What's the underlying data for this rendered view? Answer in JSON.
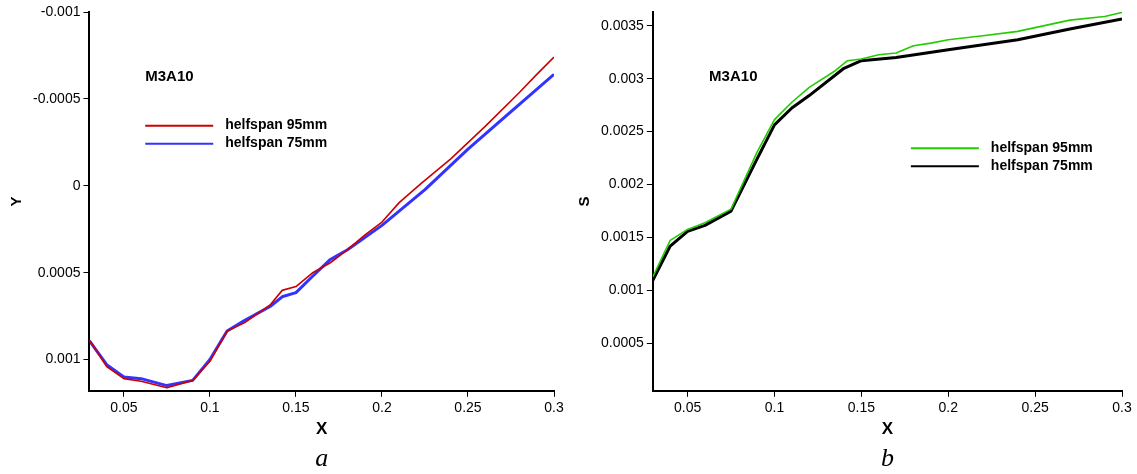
{
  "chart_data": [
    {
      "type": "line",
      "xlabel": "X",
      "ylabel": "Y",
      "annotations": [
        "M3A10",
        "a"
      ],
      "legend": "top left",
      "grid": false,
      "marker": "none",
      "line_style": "solid",
      "xlim": [
        0.03,
        0.3
      ],
      "xticks": [
        0.05,
        0.1,
        0.15,
        0.2,
        0.25,
        0.3
      ],
      "ylim": [
        0.00118,
        -0.001
      ],
      "yticks": [
        -0.001,
        -0.0005,
        0,
        0.0005,
        0.001
      ],
      "series": [
        {
          "name": "helfspan 95mm",
          "color": "#cc0000",
          "x": [
            0.03,
            0.04,
            0.05,
            0.06,
            0.075,
            0.09,
            0.1,
            0.11,
            0.12,
            0.135,
            0.142,
            0.15,
            0.16,
            0.17,
            0.18,
            0.19,
            0.2,
            0.21,
            0.223,
            0.24,
            0.26,
            0.28,
            0.29,
            0.3
          ],
          "values": [
            0.000888,
            0.00104,
            0.00111,
            0.001125,
            0.001163,
            0.00112,
            0.00101,
            0.000836,
            0.000789,
            0.000686,
            0.000602,
            0.00058,
            0.000499,
            0.000443,
            0.000368,
            0.000284,
            0.000209,
            9.7e-05,
            -1.5e-05,
            -0.000155,
            -0.000342,
            -0.000538,
            -0.000641,
            -0.00074
          ]
        },
        {
          "name": "helfspan 75mm",
          "color": "#3333ff",
          "x": [
            0.03,
            0.04,
            0.05,
            0.06,
            0.075,
            0.09,
            0.1,
            0.11,
            0.12,
            0.135,
            0.142,
            0.15,
            0.16,
            0.17,
            0.18,
            0.2,
            0.225,
            0.25,
            0.3
          ],
          "values": [
            0.000892,
            0.00103,
            0.0011,
            0.00111,
            0.00115,
            0.00112,
            0.001,
            0.000836,
            0.000776,
            0.000695,
            0.000639,
            0.000615,
            0.000518,
            0.000424,
            0.000368,
            0.000228,
            2.2e-05,
            -0.000211,
            -0.000641
          ]
        }
      ]
    },
    {
      "type": "line",
      "xlabel": "X",
      "ylabel": "S",
      "annotations": [
        "M3A10",
        "b"
      ],
      "legend": "right",
      "grid": false,
      "marker": "none",
      "line_style": "solid",
      "xlim": [
        0.03,
        0.3
      ],
      "xticks": [
        0.05,
        0.1,
        0.15,
        0.2,
        0.25,
        0.3
      ],
      "ylim": [
        5e-05,
        0.00363
      ],
      "yticks": [
        0.0005,
        0.001,
        0.0015,
        0.002,
        0.0025,
        0.003,
        0.0035
      ],
      "series": [
        {
          "name": "helfspan 95mm",
          "color": "#22cc00",
          "x": [
            0.03,
            0.04,
            0.05,
            0.06,
            0.075,
            0.09,
            0.1,
            0.11,
            0.12,
            0.135,
            0.142,
            0.15,
            0.16,
            0.17,
            0.18,
            0.19,
            0.2,
            0.22,
            0.24,
            0.27,
            0.29,
            0.3
          ],
          "values": [
            0.001126,
            0.001472,
            0.001575,
            0.001638,
            0.001767,
            0.002305,
            0.002613,
            0.002777,
            0.002918,
            0.003075,
            0.00317,
            0.003186,
            0.003226,
            0.003242,
            0.003311,
            0.003336,
            0.003368,
            0.003406,
            0.003447,
            0.003553,
            0.003588,
            0.003626
          ]
        },
        {
          "name": "helfspan 75mm",
          "color": "#000000",
          "x": [
            0.03,
            0.04,
            0.05,
            0.06,
            0.075,
            0.09,
            0.1,
            0.11,
            0.12,
            0.14,
            0.15,
            0.17,
            0.2,
            0.24,
            0.27,
            0.3
          ],
          "values": [
            0.001094,
            0.001418,
            0.001557,
            0.001613,
            0.001748,
            0.002242,
            0.002563,
            0.002723,
            0.00284,
            0.003098,
            0.00317,
            0.003201,
            0.003274,
            0.003368,
            0.003469,
            0.003563
          ]
        }
      ]
    }
  ]
}
